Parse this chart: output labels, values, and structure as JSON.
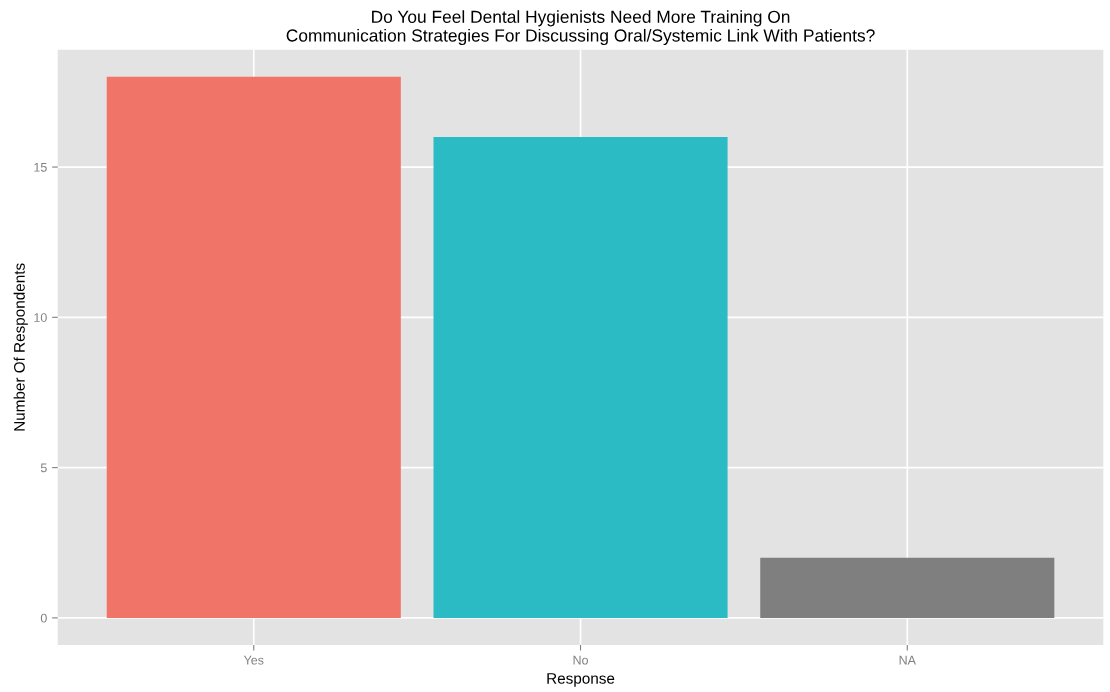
{
  "chart_data": {
    "type": "bar",
    "title": "Do You Feel Dental Hygienists Need More Training On\nCommunication Strategies For Discussing Oral/Systemic Link With Patients?",
    "xlabel": "Response",
    "ylabel": "Number Of Respondents",
    "categories": [
      "Yes",
      "No",
      "NA"
    ],
    "values": [
      18,
      16,
      2
    ],
    "colors": [
      "#f07468",
      "#2bbbc4",
      "#7f7f7f"
    ],
    "ylim": [
      -0.9,
      18.9
    ],
    "yticks": [
      0,
      5,
      10,
      15
    ],
    "grid": true
  }
}
